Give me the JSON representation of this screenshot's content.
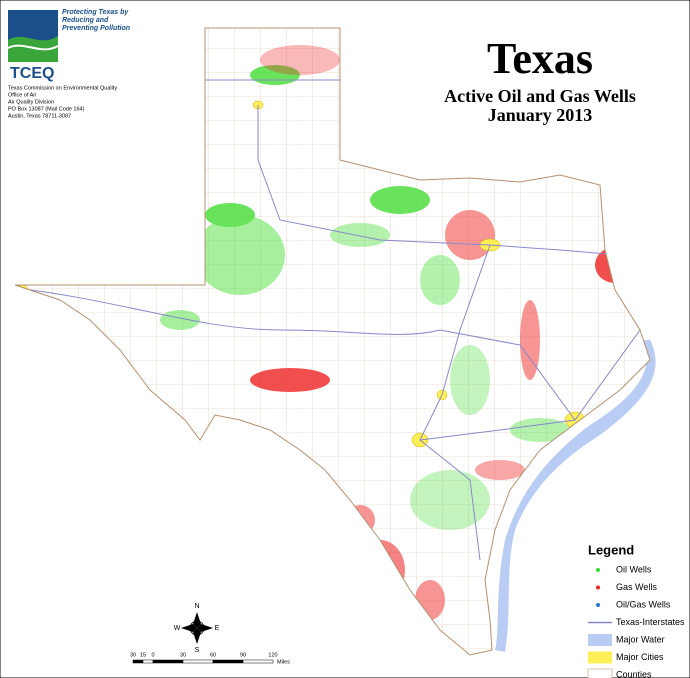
{
  "header": {
    "slogan": [
      "Protecting Texas by",
      "Reducing and",
      "Preventing Pollution"
    ],
    "agency_abbr": "TCEQ",
    "address": [
      "Texas Commission on Environmental Quality",
      "Office of Air",
      "Air Quality Division",
      "PO Box 13087 (Mail Code 164)",
      "Austin, Texas 78711-3087"
    ]
  },
  "title": {
    "main": "Texas",
    "subtitle": "Active Oil and Gas Wells",
    "date": "January 2013"
  },
  "legend": {
    "title": "Legend",
    "items": [
      "Oil Wells",
      "Gas Wells",
      "Oil/Gas Wells",
      "Texas-Interstates",
      "Major Water",
      "Major Cities",
      "Counties"
    ]
  },
  "compass": {
    "n": "N",
    "s": "S",
    "e": "E",
    "w": "W"
  },
  "scale": {
    "labels": [
      "30",
      "15",
      "0",
      "30",
      "60",
      "90",
      "120"
    ],
    "unit": "Miles"
  }
}
